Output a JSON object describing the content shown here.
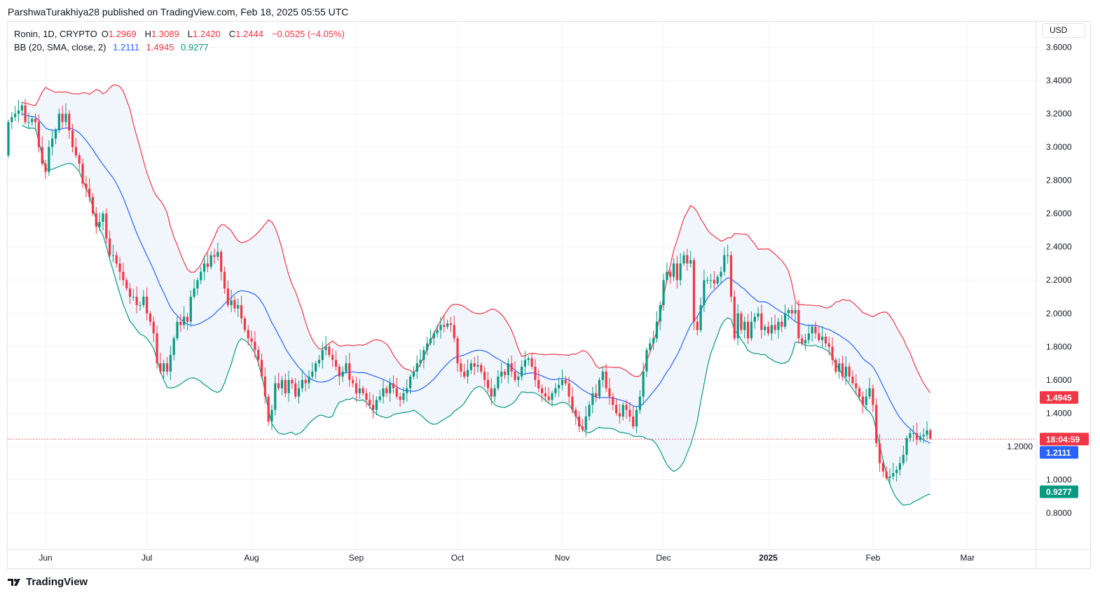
{
  "attribution": "ParshwaTurakhiya28 published on TradingView.com, Feb 18, 2025 05:55 UTC",
  "legend": {
    "symbol": "Ronin, 1D, CRYPTO",
    "open_label": "O",
    "open": "1.2969",
    "high_label": "H",
    "high": "1.3089",
    "low_label": "L",
    "low": "1.2420",
    "close_label": "C",
    "close": "1.2444",
    "change": "−0.0525 (−4.05%)",
    "indicator": "BB (20, SMA, close, 2)",
    "bb_basis": "1.2111",
    "bb_upper": "1.4945",
    "bb_lower": "0.9277"
  },
  "currency_button": "USD",
  "price_badges": {
    "upper": "1.4945",
    "countdown": "18:04:59",
    "basis": "1.2111",
    "lower": "0.9277"
  },
  "footer": {
    "logo_text": "TradingView",
    "logo_icon": "tradingview-logo-icon"
  },
  "colors": {
    "up": "#089981",
    "down": "#f23645",
    "basis": "#2962ff",
    "upper": "#f23645",
    "lower": "#089981",
    "band_fill": "#eef4fd"
  },
  "chart_data": {
    "type": "candlestick",
    "symbol": "Ronin",
    "interval": "1D",
    "start_date": "2024-05-21",
    "end_date": "2025-02-18",
    "ylim": [
      0.6,
      3.6
    ],
    "y_ticks": [
      "0.8000",
      "1.0000",
      "1.2000",
      "1.4000",
      "1.6000",
      "1.8000",
      "2.0000",
      "2.2000",
      "2.4000",
      "2.6000",
      "2.8000",
      "3.0000",
      "3.2000",
      "3.4000",
      "3.6000"
    ],
    "x_ticks": [
      {
        "label": "Jun",
        "date": "2024-06-01"
      },
      {
        "label": "Jul",
        "date": "2024-07-01"
      },
      {
        "label": "Aug",
        "date": "2024-08-01"
      },
      {
        "label": "Sep",
        "date": "2024-09-01"
      },
      {
        "label": "Oct",
        "date": "2024-10-01"
      },
      {
        "label": "Nov",
        "date": "2024-11-01"
      },
      {
        "label": "Dec",
        "date": "2024-12-01"
      },
      {
        "label": "2025",
        "date": "2025-01-01",
        "bold": true
      },
      {
        "label": "Feb",
        "date": "2025-02-01"
      },
      {
        "label": "Mar",
        "date": "2025-03-01"
      }
    ],
    "grid": true,
    "first_open": 2.95,
    "last_candle": {
      "open": 1.2969,
      "high": 1.3089,
      "low": 1.242,
      "close": 1.2444
    },
    "last_price": 1.2444,
    "bollinger": {
      "length": 20,
      "ma": "SMA",
      "source": "close",
      "mult": 2,
      "last_basis": 1.2111,
      "last_upper": 1.4945,
      "last_lower": 0.9277
    },
    "close": [
      3.15,
      3.18,
      3.2,
      3.22,
      3.25,
      3.15,
      3.15,
      3.17,
      3.15,
      3.0,
      2.9,
      2.85,
      3.0,
      3.05,
      3.1,
      3.2,
      3.15,
      3.2,
      3.1,
      3.0,
      2.95,
      2.9,
      2.78,
      2.75,
      2.7,
      2.6,
      2.52,
      2.55,
      2.6,
      2.45,
      2.35,
      2.35,
      2.3,
      2.25,
      2.2,
      2.15,
      2.1,
      2.1,
      2.05,
      2.05,
      2.1,
      2.0,
      1.95,
      1.88,
      1.7,
      1.65,
      1.7,
      1.65,
      1.75,
      1.85,
      1.95,
      1.93,
      1.98,
      1.95,
      2.1,
      2.15,
      2.2,
      2.25,
      2.3,
      2.28,
      2.35,
      2.34,
      2.37,
      2.25,
      2.15,
      2.05,
      2.08,
      2.03,
      2.05,
      1.97,
      1.9,
      1.85,
      1.83,
      1.78,
      1.72,
      1.62,
      1.5,
      1.35,
      1.42,
      1.58,
      1.55,
      1.6,
      1.52,
      1.6,
      1.58,
      1.5,
      1.55,
      1.6,
      1.58,
      1.62,
      1.65,
      1.7,
      1.72,
      1.78,
      1.8,
      1.75,
      1.72,
      1.68,
      1.62,
      1.65,
      1.7,
      1.6,
      1.58,
      1.52,
      1.55,
      1.52,
      1.48,
      1.45,
      1.42,
      1.48,
      1.5,
      1.55,
      1.52,
      1.58,
      1.55,
      1.5,
      1.48,
      1.52,
      1.55,
      1.62,
      1.65,
      1.7,
      1.72,
      1.78,
      1.82,
      1.85,
      1.88,
      1.9,
      1.93,
      1.92,
      1.94,
      1.93,
      1.85,
      1.7,
      1.65,
      1.62,
      1.66,
      1.7,
      1.68,
      1.69,
      1.65,
      1.6,
      1.55,
      1.5,
      1.55,
      1.62,
      1.65,
      1.63,
      1.7,
      1.65,
      1.6,
      1.62,
      1.68,
      1.72,
      1.73,
      1.68,
      1.6,
      1.55,
      1.52,
      1.5,
      1.48,
      1.52,
      1.55,
      1.57,
      1.6,
      1.58,
      1.5,
      1.42,
      1.38,
      1.32,
      1.3,
      1.38,
      1.45,
      1.52,
      1.5,
      1.6,
      1.65,
      1.55,
      1.5,
      1.45,
      1.4,
      1.38,
      1.45,
      1.42,
      1.38,
      1.32,
      1.42,
      1.5,
      1.65,
      1.78,
      1.82,
      1.85,
      1.95,
      2.05,
      2.2,
      2.25,
      2.22,
      2.3,
      2.2,
      2.3,
      2.35,
      2.3,
      2.32,
      1.95,
      1.9,
      2.05,
      2.2,
      2.2,
      2.2,
      2.18,
      2.22,
      2.25,
      2.35,
      2.35,
      2.1,
      1.85,
      2.0,
      1.9,
      1.95,
      1.85,
      1.95,
      1.98,
      2.0,
      1.9,
      1.92,
      1.88,
      1.93,
      1.9,
      1.95,
      1.92,
      2.0,
      2.02,
      2.0,
      2.02,
      1.85,
      1.82,
      1.84,
      1.88,
      1.92,
      1.88,
      1.84,
      1.86,
      1.82,
      1.8,
      1.72,
      1.65,
      1.7,
      1.62,
      1.68,
      1.62,
      1.58,
      1.55,
      1.5,
      1.45,
      1.5,
      1.55,
      1.45,
      1.22,
      1.1,
      1.05,
      1.01,
      1.02,
      1.04,
      1.06,
      1.1,
      1.15,
      1.25,
      1.28,
      1.28,
      1.24,
      1.26,
      1.27,
      1.2969,
      1.2444
    ]
  }
}
